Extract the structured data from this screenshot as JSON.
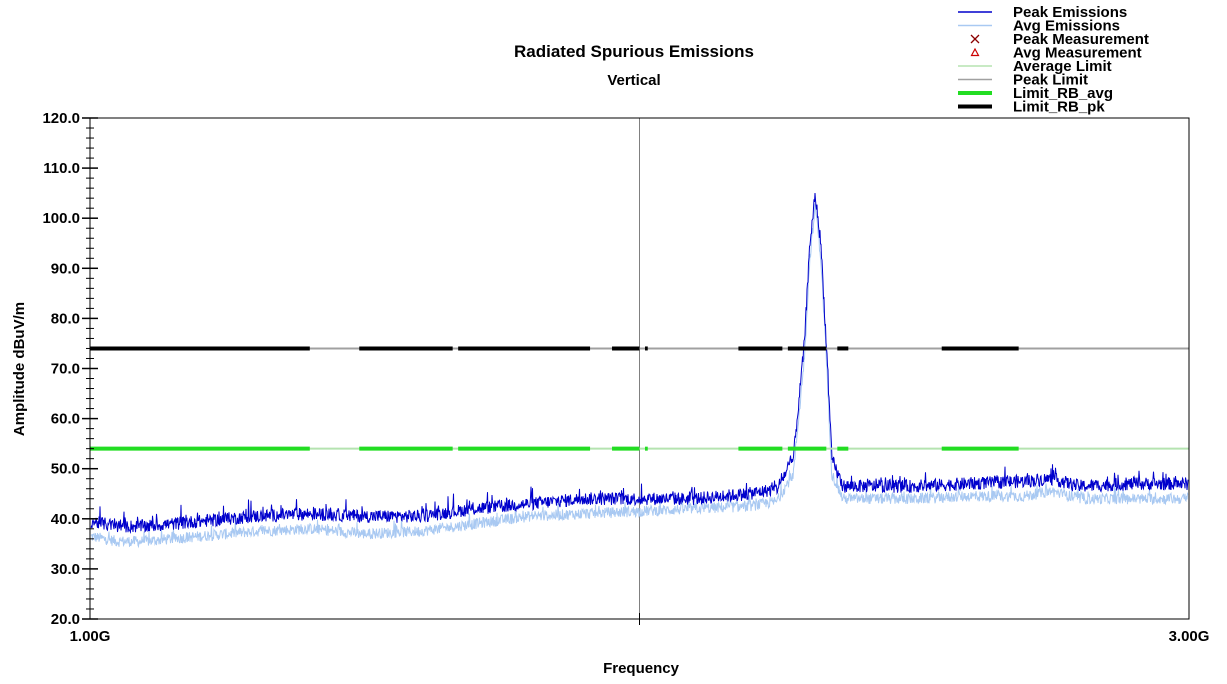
{
  "chart_data": {
    "type": "line",
    "title": "Radiated Spurious Emissions",
    "subtitle": "Vertical",
    "xlabel": "Frequency",
    "ylabel": "Amplitude dBuV/m",
    "xlim_ghz": [
      1.0,
      3.0
    ],
    "ylim": [
      20,
      120
    ],
    "x_tick_labels": [
      "1.00G",
      "3.00G"
    ],
    "y_tick_labels": [
      "120.0",
      "110.0",
      "100.0",
      "90.0",
      "80.0",
      "70.0",
      "60.0",
      "50.0",
      "40.0",
      "30.0",
      "20.0"
    ],
    "grid": "vertical line at mid frequency",
    "legend_position": "top-right",
    "legend": [
      {
        "label": "Peak Emissions",
        "symbol": "line",
        "color": "#0000CC"
      },
      {
        "label": "Avg Emissions",
        "symbol": "line",
        "color": "#A9C9F2"
      },
      {
        "label": "Peak Measurement",
        "symbol": "x",
        "color": "#8B0000"
      },
      {
        "label": "Avg Measurement",
        "symbol": "triangle",
        "color": "#CC0000"
      },
      {
        "label": "Average Limit",
        "symbol": "line",
        "color": "#B5E3B0"
      },
      {
        "label": "Peak Limit",
        "symbol": "line",
        "color": "#A0A0A0"
      },
      {
        "label": "Limit_RB_avg",
        "symbol": "thick-line",
        "color": "#22DD22"
      },
      {
        "label": "Limit_RB_pk",
        "symbol": "thick-line",
        "color": "#000000"
      }
    ],
    "series": [
      {
        "name": "Peak Emissions",
        "color": "#0000CC",
        "x": [
          1.0,
          1.05,
          1.1,
          1.2,
          1.3,
          1.4,
          1.5,
          1.6,
          1.7,
          1.8,
          1.9,
          2.0,
          2.1,
          2.2,
          2.25,
          2.28,
          2.3,
          2.31,
          2.32,
          2.33,
          2.34,
          2.35,
          2.37,
          2.4,
          2.5,
          2.6,
          2.7,
          2.75,
          2.8,
          2.9,
          3.0
        ],
        "values": [
          39.5,
          38.5,
          38.5,
          39.5,
          40.5,
          41.0,
          40.5,
          40.5,
          42.0,
          43.0,
          44.0,
          44.0,
          44.0,
          45.0,
          46.0,
          52.0,
          75.0,
          95.0,
          104.5,
          95.0,
          75.0,
          52.0,
          46.5,
          46.5,
          46.5,
          47.0,
          47.5,
          48.0,
          46.5,
          47.0,
          47.0
        ]
      },
      {
        "name": "Avg Emissions",
        "color": "#A9C9F2",
        "x": [
          1.0,
          1.05,
          1.1,
          1.2,
          1.3,
          1.4,
          1.5,
          1.6,
          1.7,
          1.8,
          1.9,
          2.0,
          2.1,
          2.2,
          2.25,
          2.28,
          2.3,
          2.31,
          2.32,
          2.33,
          2.34,
          2.35,
          2.37,
          2.4,
          2.5,
          2.6,
          2.7,
          2.75,
          2.8,
          2.9,
          3.0
        ],
        "values": [
          36.5,
          35.5,
          35.5,
          36.5,
          37.5,
          38.0,
          37.0,
          37.5,
          39.0,
          40.5,
          41.0,
          41.5,
          42.0,
          42.5,
          43.5,
          49.0,
          72.0,
          92.0,
          102.5,
          92.0,
          72.0,
          49.0,
          44.0,
          44.0,
          44.0,
          44.5,
          44.5,
          45.5,
          44.0,
          44.0,
          44.0
        ]
      },
      {
        "name": "Peak Limit",
        "color": "#A0A0A0",
        "x": [
          1.0,
          3.0
        ],
        "values": [
          74,
          74
        ]
      },
      {
        "name": "Average Limit",
        "color": "#B5E3B0",
        "x": [
          1.0,
          3.0
        ],
        "values": [
          54,
          54
        ]
      },
      {
        "name": "Limit_RB_pk",
        "color": "#000000",
        "value": 74,
        "segments_ghz": [
          [
            1.0,
            1.4
          ],
          [
            1.49,
            1.66
          ],
          [
            1.67,
            1.91
          ],
          [
            1.95,
            2.0
          ],
          [
            2.01,
            2.015
          ],
          [
            2.18,
            2.26
          ],
          [
            2.27,
            2.34
          ],
          [
            2.36,
            2.38
          ],
          [
            2.55,
            2.69
          ]
        ]
      },
      {
        "name": "Limit_RB_avg",
        "color": "#22DD22",
        "value": 54,
        "segments_ghz": [
          [
            1.0,
            1.4
          ],
          [
            1.49,
            1.66
          ],
          [
            1.67,
            1.91
          ],
          [
            1.95,
            2.0
          ],
          [
            2.01,
            2.015
          ],
          [
            2.18,
            2.26
          ],
          [
            2.27,
            2.34
          ],
          [
            2.36,
            2.38
          ],
          [
            2.55,
            2.69
          ]
        ]
      }
    ]
  }
}
